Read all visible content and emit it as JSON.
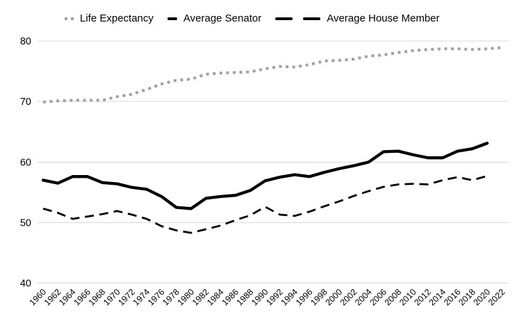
{
  "chart_data": {
    "type": "line",
    "title": "",
    "xlabel": "",
    "ylabel": "",
    "ylim": [
      40,
      80
    ],
    "y_ticks": [
      80,
      70,
      60,
      50,
      40
    ],
    "grid": "horizontal",
    "legend_position": "top",
    "x_tick_labels": [
      "1960",
      "1962",
      "1964",
      "1966",
      "1968",
      "1970",
      "1972",
      "1974",
      "1976",
      "1978",
      "1980",
      "1982",
      "1984",
      "1986",
      "1988",
      "1990",
      "1992",
      "1994",
      "1996",
      "1998",
      "2000",
      "2002",
      "2004",
      "2006",
      "2008",
      "2010",
      "2012",
      "2014",
      "2016",
      "2018",
      "2020",
      "2022"
    ],
    "series": [
      {
        "name": "Life Expectancy",
        "style": "dotted",
        "color": "#a0a0a0",
        "stroke_width": 4,
        "values": [
          69.9,
          70.1,
          70.2,
          70.2,
          70.2,
          70.8,
          71.2,
          72.0,
          72.9,
          73.5,
          73.7,
          74.5,
          74.7,
          74.8,
          74.9,
          75.4,
          75.8,
          75.7,
          76.1,
          76.7,
          76.8,
          77.0,
          77.5,
          77.7,
          78.1,
          78.4,
          78.6,
          78.7,
          78.7,
          78.6,
          78.7,
          78.9
        ]
      },
      {
        "name": "Average Senator",
        "style": "dashed",
        "color": "#000000",
        "stroke_width": 2.8,
        "values": [
          52.3,
          51.6,
          50.6,
          51.0,
          51.4,
          51.9,
          51.3,
          50.6,
          49.4,
          48.7,
          48.3,
          48.9,
          49.5,
          50.4,
          51.2,
          52.6,
          51.3,
          51.1,
          51.8,
          52.7,
          53.5,
          54.4,
          55.2,
          55.9,
          56.3,
          56.4,
          56.3,
          57.0,
          57.5,
          57.0,
          57.7
        ]
      },
      {
        "name": "Average House Member",
        "style": "solid",
        "color": "#000000",
        "stroke_width": 4.3,
        "values": [
          57.0,
          56.5,
          57.6,
          57.6,
          56.6,
          56.4,
          55.8,
          55.5,
          54.3,
          52.5,
          52.3,
          54.0,
          54.3,
          54.5,
          55.3,
          56.9,
          57.5,
          57.9,
          57.6,
          58.3,
          58.9,
          59.4,
          60.0,
          61.7,
          61.8,
          61.2,
          60.7,
          60.7,
          61.8,
          62.2,
          63.1
        ]
      }
    ]
  },
  "colors": {
    "background": "#ffffff",
    "gridline": "#d9d9d9",
    "axis_label": "#000000",
    "dotted_series": "#a0a0a0",
    "black_series": "#000000"
  }
}
